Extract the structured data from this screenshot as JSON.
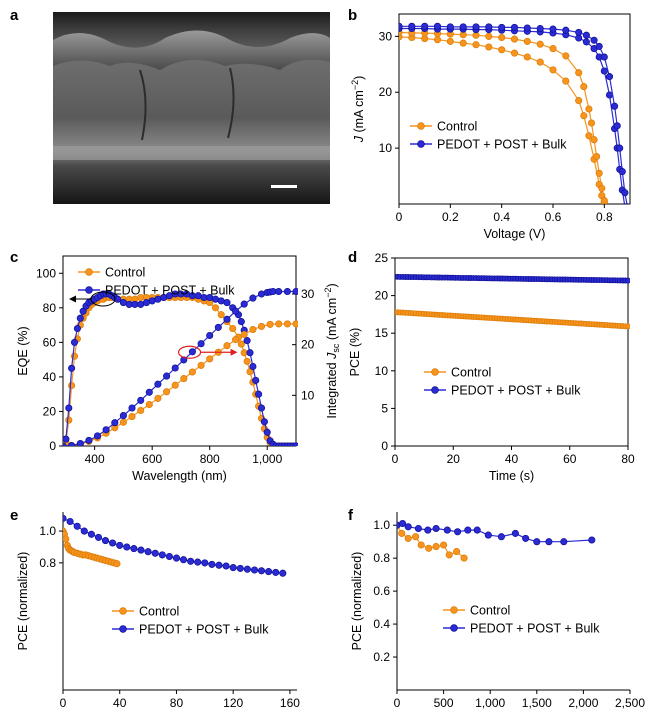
{
  "colors": {
    "orange": "#f7941d",
    "orange_edge": "#d97a06",
    "blue": "#2b2bd6",
    "blue_edge": "#0f0f8f",
    "arrow_red": "#e02020"
  },
  "panels": {
    "a": {
      "letter": "a",
      "image_description_kind": "cross-sectional SEM micrograph with scale bar"
    }
  },
  "chart_data": [
    {
      "id": "b",
      "letter": "b",
      "type": "line",
      "xlabel": "Voltage (V)",
      "ylabel": "J (mA cm−2)",
      "ylabel_parts": [
        "J",
        " (mA cm",
        "−2",
        ")"
      ],
      "xlim": [
        0,
        0.9
      ],
      "ylim": [
        0,
        34
      ],
      "xticks": [
        0,
        0.2,
        0.4,
        0.6,
        0.8
      ],
      "xtick_labels": [
        "0",
        "0.2",
        "0.4",
        "0.6",
        "0.8"
      ],
      "yticks": [
        10,
        20,
        30
      ],
      "ytick_labels": [
        "10",
        "20",
        "30"
      ],
      "legend_position": "lower-left",
      "series": [
        {
          "name": "Control",
          "color_key": "orange",
          "marker": "circle",
          "x": [
            0,
            0.05,
            0.1,
            0.15,
            0.2,
            0.25,
            0.3,
            0.35,
            0.4,
            0.45,
            0.5,
            0.55,
            0.6,
            0.65,
            0.7,
            0.72,
            0.74,
            0.76,
            0.78,
            0.79,
            0.8,
            0.81
          ],
          "y": [
            29.9,
            29.8,
            29.6,
            29.4,
            29.1,
            28.8,
            28.5,
            28.1,
            27.6,
            27.0,
            26.3,
            25.4,
            24.0,
            22.0,
            18.5,
            15.8,
            12.2,
            8.0,
            3.5,
            1.5,
            0.3,
            -1
          ]
        },
        {
          "name": "Control",
          "color_key": "orange",
          "marker": "circle",
          "x": [
            0,
            0.05,
            0.1,
            0.15,
            0.2,
            0.25,
            0.3,
            0.35,
            0.4,
            0.45,
            0.5,
            0.55,
            0.6,
            0.65,
            0.7,
            0.72,
            0.74,
            0.75,
            0.76,
            0.77,
            0.78,
            0.79,
            0.8,
            0.81
          ],
          "y": [
            30.7,
            30.6,
            30.6,
            30.5,
            30.4,
            30.3,
            30.2,
            30.0,
            29.8,
            29.5,
            29.1,
            28.6,
            27.8,
            26.5,
            23.5,
            21.0,
            17.0,
            14.5,
            11.5,
            8.5,
            5.5,
            2.8,
            0.6,
            -1
          ]
        },
        {
          "name": "PEDOT + POST + Bulk",
          "color_key": "blue",
          "marker": "circle",
          "x": [
            0,
            0.05,
            0.1,
            0.15,
            0.2,
            0.25,
            0.3,
            0.35,
            0.4,
            0.45,
            0.5,
            0.55,
            0.6,
            0.65,
            0.7,
            0.73,
            0.76,
            0.78,
            0.8,
            0.82,
            0.84,
            0.85,
            0.86,
            0.87,
            0.88
          ],
          "y": [
            31.4,
            31.4,
            31.4,
            31.3,
            31.3,
            31.3,
            31.2,
            31.2,
            31.1,
            31.0,
            30.9,
            30.8,
            30.6,
            30.3,
            29.7,
            29.0,
            27.8,
            26.3,
            23.8,
            19.5,
            13.5,
            10.0,
            6.2,
            2.5,
            -0.5
          ]
        },
        {
          "name": "PEDOT + POST + Bulk",
          "color_key": "blue",
          "marker": "circle",
          "x": [
            0,
            0.05,
            0.1,
            0.15,
            0.2,
            0.25,
            0.3,
            0.35,
            0.4,
            0.45,
            0.5,
            0.55,
            0.6,
            0.65,
            0.7,
            0.73,
            0.76,
            0.78,
            0.8,
            0.82,
            0.84,
            0.85,
            0.86,
            0.87,
            0.88,
            0.89
          ],
          "y": [
            31.8,
            31.8,
            31.8,
            31.8,
            31.7,
            31.7,
            31.7,
            31.7,
            31.6,
            31.6,
            31.5,
            31.4,
            31.3,
            31.1,
            30.7,
            30.2,
            29.3,
            28.2,
            26.3,
            22.8,
            17.5,
            14.0,
            10.0,
            5.8,
            2.0,
            -0.5
          ]
        }
      ]
    },
    {
      "id": "c",
      "letter": "c",
      "type": "line",
      "xlabel": "Wavelength (nm)",
      "ylabel": "EQE (%)",
      "ylabel_right": "Integrated Jsc (mA cm−2)",
      "ylabel_right_parts": [
        "Integrated ",
        "J",
        "sc",
        " (mA cm",
        "−2",
        ")"
      ],
      "xlim": [
        290,
        1100
      ],
      "ylim": [
        0,
        110
      ],
      "y2lim": [
        0,
        37.5
      ],
      "xticks": [
        400,
        600,
        800,
        1000
      ],
      "xtick_labels": [
        "400",
        "600",
        "800",
        "1,000"
      ],
      "yticks": [
        0,
        20,
        40,
        60,
        80,
        100
      ],
      "ytick_labels": [
        "0",
        "20",
        "40",
        "60",
        "80",
        "100"
      ],
      "y2ticks": [
        10,
        20,
        30
      ],
      "y2tick_labels": [
        "10",
        "20",
        "30"
      ],
      "legend_position": "top-left",
      "series": [
        {
          "name": "Control",
          "color_key": "orange",
          "axis": "left",
          "x": [
            300,
            310,
            320,
            330,
            340,
            350,
            360,
            370,
            380,
            390,
            400,
            410,
            420,
            430,
            440,
            450,
            460,
            480,
            500,
            520,
            540,
            560,
            580,
            600,
            620,
            640,
            660,
            680,
            700,
            720,
            740,
            760,
            780,
            800,
            820,
            840,
            860,
            880,
            900,
            910,
            920,
            930,
            940,
            950,
            960,
            970,
            980,
            990,
            1000,
            1010,
            1020,
            1030,
            1040,
            1050,
            1060,
            1070,
            1080,
            1090,
            1100
          ],
          "y": [
            2,
            15,
            35,
            52,
            62,
            70,
            74,
            77,
            80,
            82,
            83,
            84,
            85,
            85,
            86,
            86,
            86,
            85,
            85,
            85,
            85,
            86,
            86,
            86,
            86,
            86,
            86,
            86,
            86,
            86,
            86,
            85,
            84,
            83,
            80,
            76,
            72,
            68,
            63,
            59,
            54,
            49,
            43,
            37,
            30,
            23,
            16,
            10,
            5,
            2,
            0.5,
            0,
            0,
            0,
            0,
            0,
            0,
            0,
            0
          ]
        },
        {
          "name": "PEDOT + POST + Bulk",
          "color_key": "blue",
          "axis": "left",
          "x": [
            300,
            310,
            320,
            330,
            340,
            350,
            360,
            370,
            380,
            390,
            400,
            410,
            420,
            430,
            440,
            450,
            460,
            470,
            480,
            500,
            520,
            540,
            560,
            580,
            600,
            620,
            640,
            660,
            680,
            700,
            720,
            740,
            760,
            780,
            800,
            820,
            840,
            860,
            880,
            900,
            910,
            920,
            930,
            940,
            950,
            960,
            970,
            980,
            990,
            1000,
            1010,
            1020,
            1030,
            1040,
            1050,
            1060,
            1070,
            1080,
            1090,
            1100
          ],
          "y": [
            4,
            22,
            45,
            60,
            68,
            74,
            78,
            81,
            83,
            84,
            85,
            86,
            87,
            88,
            88,
            88,
            87,
            86,
            85,
            83,
            82,
            82,
            82,
            83,
            84,
            85,
            86,
            87,
            88,
            88,
            88,
            87,
            87,
            86,
            86,
            85,
            84,
            83,
            80,
            76,
            72,
            67,
            61,
            54,
            46,
            38,
            30,
            22,
            14,
            8,
            3,
            1,
            0,
            0,
            0,
            0,
            0,
            0,
            0,
            0
          ]
        },
        {
          "name": "Control Jsc",
          "color_key": "orange",
          "axis": "right",
          "x": [
            290,
            320,
            350,
            380,
            410,
            440,
            470,
            500,
            530,
            560,
            590,
            620,
            650,
            680,
            710,
            740,
            770,
            800,
            830,
            860,
            890,
            920,
            950,
            980,
            1010,
            1040,
            1070,
            1100
          ],
          "y": [
            0,
            0.1,
            0.4,
            0.9,
            1.6,
            2.5,
            3.6,
            4.7,
            5.8,
            7.0,
            8.2,
            9.4,
            10.7,
            12.0,
            13.3,
            14.6,
            15.9,
            17.2,
            18.5,
            19.8,
            21.0,
            22.0,
            23.0,
            23.6,
            24.0,
            24.1,
            24.1,
            24.1
          ]
        },
        {
          "name": "PEDOT + POST + Bulk Jsc",
          "color_key": "blue",
          "axis": "right",
          "x": [
            290,
            320,
            350,
            380,
            410,
            440,
            470,
            500,
            530,
            560,
            590,
            620,
            650,
            680,
            710,
            740,
            770,
            800,
            830,
            860,
            890,
            920,
            950,
            980,
            1000,
            1010,
            1020,
            1040,
            1070,
            1100
          ],
          "y": [
            0,
            0.1,
            0.5,
            1.1,
            2.0,
            3.2,
            4.6,
            6.0,
            7.5,
            9.0,
            10.6,
            12.2,
            13.8,
            15.4,
            17.0,
            18.6,
            20.2,
            21.8,
            23.4,
            25.0,
            26.6,
            28.0,
            29.2,
            30.0,
            30.3,
            30.4,
            30.5,
            30.5,
            30.5,
            30.5
          ]
        }
      ]
    },
    {
      "id": "d",
      "letter": "d",
      "type": "line",
      "xlabel": "Time (s)",
      "ylabel": "PCE (%)",
      "xlim": [
        0,
        80
      ],
      "ylim": [
        0,
        25
      ],
      "xticks": [
        0,
        20,
        40,
        60,
        80
      ],
      "xtick_labels": [
        "0",
        "20",
        "40",
        "60",
        "80"
      ],
      "yticks": [
        0,
        5,
        10,
        15,
        20,
        25
      ],
      "ytick_labels": [
        "0",
        "5",
        "10",
        "15",
        "20",
        "25"
      ],
      "legend_position": "lower-left",
      "series": [
        {
          "name": "Control",
          "color_key": "orange",
          "x_start": 0,
          "x_end": 80,
          "y_start": 17.8,
          "y_end": 15.9,
          "n": 90
        },
        {
          "name": "PEDOT + POST + Bulk",
          "color_key": "blue",
          "x_start": 0,
          "x_end": 80,
          "y_start": 22.5,
          "y_end": 22.0,
          "n": 90
        }
      ]
    },
    {
      "id": "e",
      "letter": "e",
      "type": "line",
      "xlabel": "",
      "ylabel": "PCE (normalized)",
      "xlim": [
        0,
        165
      ],
      "ylim": [
        0,
        1.12
      ],
      "xticks": [
        0,
        40,
        80,
        120,
        160
      ],
      "xtick_labels": [
        "0",
        "40",
        "80",
        "120",
        "160"
      ],
      "yticks": [
        0.8,
        1.0
      ],
      "ytick_labels": [
        "0.8",
        "1.0"
      ],
      "legend_position": "lower-left",
      "series": [
        {
          "name": "Control",
          "color_key": "orange",
          "x": [
            0,
            1,
            2,
            3,
            4,
            5,
            6,
            7,
            8,
            10,
            12,
            14,
            16,
            18,
            20,
            22,
            24,
            26,
            28,
            30,
            32,
            34,
            36,
            38
          ],
          "y": [
            1.0,
            0.98,
            0.95,
            0.91,
            0.89,
            0.88,
            0.875,
            0.87,
            0.865,
            0.86,
            0.855,
            0.85,
            0.85,
            0.845,
            0.84,
            0.835,
            0.83,
            0.825,
            0.82,
            0.815,
            0.81,
            0.805,
            0.8,
            0.795
          ]
        },
        {
          "name": "PEDOT + POST + Bulk",
          "color_key": "blue",
          "x": [
            0,
            5,
            10,
            15,
            20,
            25,
            30,
            35,
            40,
            45,
            50,
            55,
            60,
            65,
            70,
            75,
            80,
            85,
            90,
            95,
            100,
            105,
            110,
            115,
            120,
            125,
            130,
            135,
            140,
            145,
            150,
            155
          ],
          "y": [
            1.08,
            1.06,
            1.03,
            1.0,
            0.98,
            0.96,
            0.94,
            0.925,
            0.91,
            0.9,
            0.89,
            0.88,
            0.87,
            0.86,
            0.85,
            0.84,
            0.83,
            0.82,
            0.81,
            0.805,
            0.8,
            0.79,
            0.785,
            0.78,
            0.77,
            0.765,
            0.76,
            0.755,
            0.75,
            0.745,
            0.74,
            0.735
          ]
        }
      ]
    },
    {
      "id": "f",
      "letter": "f",
      "type": "line",
      "xlabel": "",
      "ylabel": "PCE (normalized)",
      "xlim": [
        0,
        2500
      ],
      "ylim": [
        0,
        1.08
      ],
      "xticks": [
        0,
        500,
        1000,
        1500,
        2000,
        2500
      ],
      "xtick_labels": [
        "0",
        "500",
        "1,000",
        "1,500",
        "2,000",
        "2,500"
      ],
      "yticks": [
        0.2,
        0.4,
        0.6,
        0.8,
        1.0
      ],
      "ytick_labels": [
        "0.2",
        "0.4",
        "0.6",
        "0.8",
        "1.0"
      ],
      "legend_position": "lower-left",
      "series": [
        {
          "name": "Control",
          "color_key": "orange",
          "x": [
            0,
            50,
            120,
            200,
            260,
            340,
            420,
            500,
            560,
            640,
            720
          ],
          "y": [
            1.0,
            0.95,
            0.92,
            0.93,
            0.88,
            0.86,
            0.87,
            0.88,
            0.82,
            0.84,
            0.8
          ]
        },
        {
          "name": "PEDOT + POST + Bulk",
          "color_key": "blue",
          "x": [
            0,
            60,
            120,
            230,
            330,
            420,
            540,
            650,
            760,
            860,
            980,
            1120,
            1270,
            1380,
            1500,
            1630,
            1790,
            2090
          ],
          "y": [
            1.0,
            1.01,
            0.99,
            0.98,
            0.97,
            0.98,
            0.97,
            0.96,
            0.97,
            0.97,
            0.94,
            0.93,
            0.95,
            0.92,
            0.9,
            0.9,
            0.9,
            0.91
          ]
        }
      ]
    }
  ]
}
